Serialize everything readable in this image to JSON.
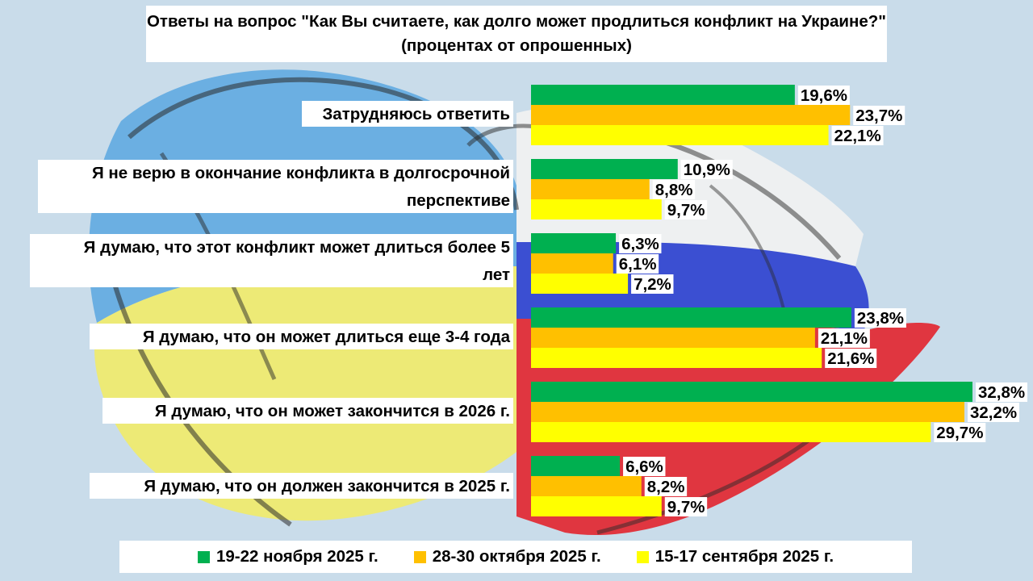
{
  "title": "Ответы на вопрос \"Как Вы считаете, как долго может продлиться конфликт на Украине?\" (процентах от опрошенных)",
  "legend": {
    "position": "bottom",
    "items": [
      {
        "label": "19-22 ноября 2025 г.",
        "color": "#00b050"
      },
      {
        "label": "28-30 октября 2025 г.",
        "color": "#ffc000"
      },
      {
        "label": "15-17 сентября 2025 г.",
        "color": "#ffff00"
      }
    ]
  },
  "chart_data": {
    "type": "bar",
    "orientation": "horizontal",
    "title": "Ответы на вопрос \"Как Вы считаете, как долго может продлиться конфликт на Украине?\" (процентах от опрошенных)",
    "xlabel": "",
    "ylabel": "",
    "xlim": [
      0,
      32.8
    ],
    "grid": false,
    "legend_position": "bottom",
    "categories": [
      "Затрудняюсь ответить",
      "Я не верю в окончание конфликта в долгосрочной перспективе",
      "Я думаю, что этот конфликт может длиться более 5 лет",
      "Я думаю, что он может длиться еще 3-4 года",
      "Я думаю, что он может закончится в 2026 г.",
      "Я думаю, что он должен закончится в 2025 г."
    ],
    "series": [
      {
        "name": "19-22 ноября 2025 г.",
        "color": "#00b050",
        "values": [
          19.6,
          10.9,
          6.3,
          23.8,
          32.8,
          6.6
        ],
        "labels": [
          "19,6%",
          "10,9%",
          "6,3%",
          "23,8%",
          "32,8%",
          "6,6%"
        ]
      },
      {
        "name": "28-30 октября 2025 г.",
        "color": "#ffc000",
        "values": [
          23.7,
          8.8,
          6.1,
          21.1,
          32.2,
          8.2
        ],
        "labels": [
          "23,7%",
          "8,8%",
          "6,1%",
          "21,1%",
          "32,2%",
          "8,2%"
        ]
      },
      {
        "name": "15-17 сентября 2025 г.",
        "color": "#ffff00",
        "values": [
          22.1,
          9.7,
          7.2,
          21.6,
          29.7,
          9.7
        ],
        "labels": [
          "22,1%",
          "9,7%",
          "7,2%",
          "21,6%",
          "29,7%",
          "9,7%"
        ]
      }
    ]
  }
}
